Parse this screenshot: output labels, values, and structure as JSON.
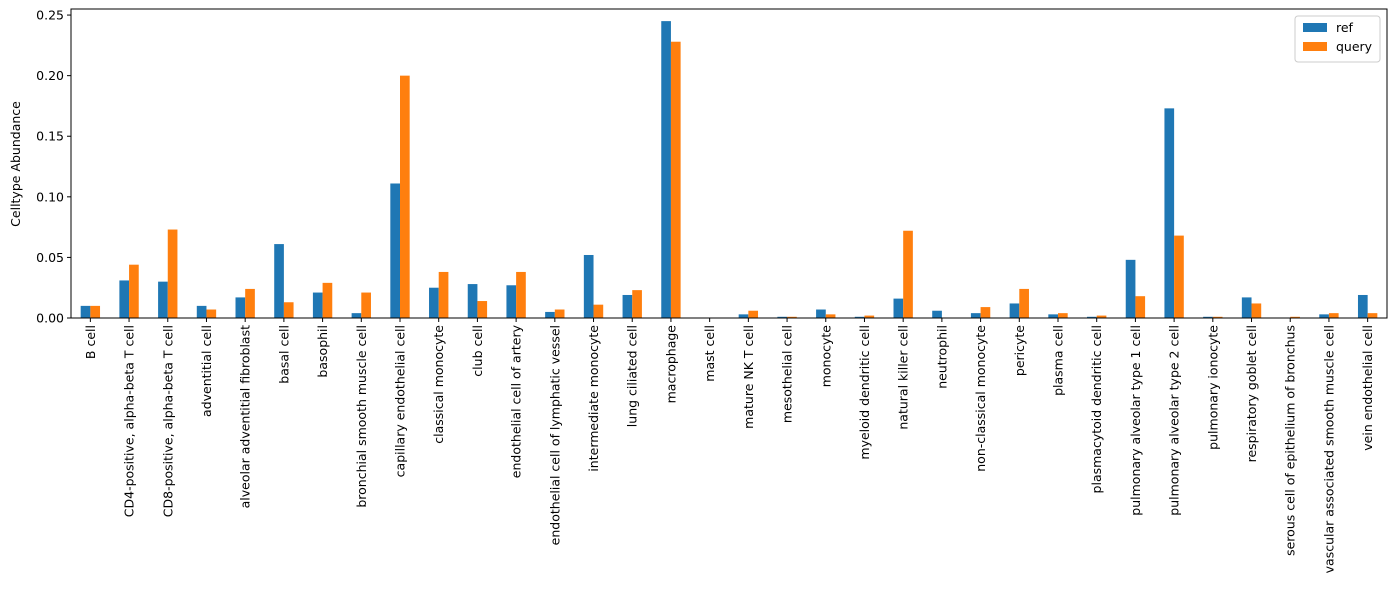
{
  "chart_data": {
    "type": "bar",
    "title": "",
    "xlabel": "",
    "ylabel": "Celltype Abundance",
    "ylim": [
      0,
      0.255
    ],
    "yticks": [
      0.0,
      0.05,
      0.1,
      0.15,
      0.2,
      0.25
    ],
    "ytick_labels": [
      "0.00",
      "0.05",
      "0.10",
      "0.15",
      "0.20",
      "0.25"
    ],
    "grid": false,
    "legend_position": "top-right",
    "categories": [
      "B cell",
      "CD4-positive, alpha-beta T cell",
      "CD8-positive, alpha-beta T cell",
      "adventitial cell",
      "alveolar adventitial fibroblast",
      "basal cell",
      "basophil",
      "bronchial smooth muscle cell",
      "capillary endothelial cell",
      "classical monocyte",
      "club cell",
      "endothelial cell of artery",
      "endothelial cell of lymphatic vessel",
      "intermediate monocyte",
      "lung ciliated cell",
      "macrophage",
      "mast cell",
      "mature NK T cell",
      "mesothelial cell",
      "monocyte",
      "myeloid dendritic cell",
      "natural killer cell",
      "neutrophil",
      "non-classical monocyte",
      "pericyte",
      "plasma cell",
      "plasmacytoid dendritic cell",
      "pulmonary alveolar type 1 cell",
      "pulmonary alveolar type 2 cell",
      "pulmonary ionocyte",
      "respiratory goblet cell",
      "serous cell of epithelium of bronchus",
      "vascular associated smooth muscle cell",
      "vein endothelial cell"
    ],
    "series": [
      {
        "name": "ref",
        "color": "#1f77b4",
        "values": [
          0.01,
          0.031,
          0.03,
          0.01,
          0.017,
          0.061,
          0.021,
          0.004,
          0.111,
          0.025,
          0.028,
          0.027,
          0.005,
          0.052,
          0.019,
          0.245,
          0.0,
          0.003,
          0.001,
          0.007,
          0.001,
          0.016,
          0.006,
          0.004,
          0.012,
          0.003,
          0.001,
          0.048,
          0.173,
          0.001,
          0.017,
          0.0,
          0.003,
          0.019
        ]
      },
      {
        "name": "query",
        "color": "#ff7f0e",
        "values": [
          0.01,
          0.044,
          0.073,
          0.007,
          0.024,
          0.013,
          0.029,
          0.021,
          0.2,
          0.038,
          0.014,
          0.038,
          0.007,
          0.011,
          0.023,
          0.228,
          0.0,
          0.006,
          0.001,
          0.003,
          0.002,
          0.072,
          0.0,
          0.009,
          0.024,
          0.004,
          0.002,
          0.018,
          0.068,
          0.001,
          0.012,
          0.001,
          0.004,
          0.004
        ]
      }
    ]
  }
}
